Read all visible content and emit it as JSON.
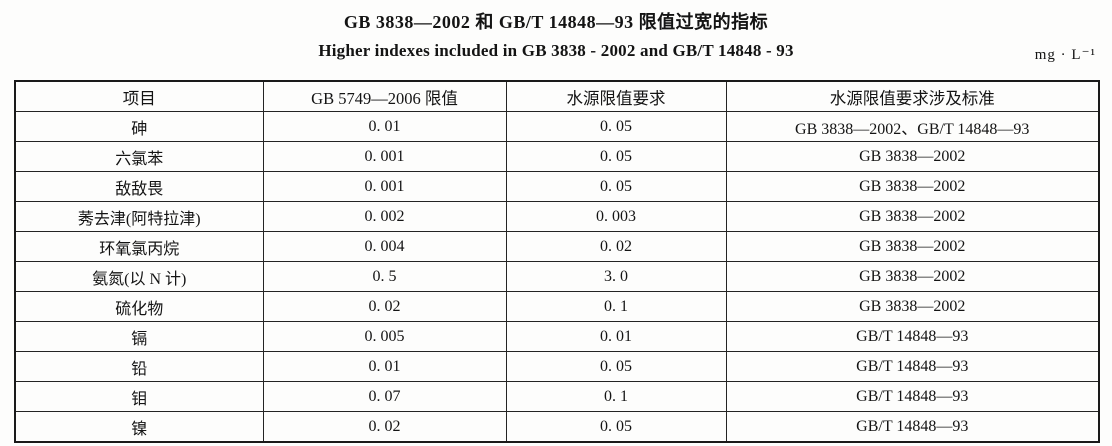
{
  "heading": {
    "title_zh": "GB 3838—2002 和 GB/T 14848—93 限值过宽的指标",
    "title_en": "Higher indexes included in GB 3838 - 2002 and GB/T 14848 - 93",
    "unit": "mg · L⁻¹"
  },
  "table": {
    "columns": [
      "项目",
      "GB 5749—2006 限值",
      "水源限值要求",
      "水源限值要求涉及标准"
    ],
    "rows": [
      [
        "砷",
        "0. 01",
        "0. 05",
        "GB 3838—2002、GB/T 14848—93"
      ],
      [
        "六氯苯",
        "0. 001",
        "0. 05",
        "GB 3838—2002"
      ],
      [
        "敌敌畏",
        "0. 001",
        "0. 05",
        "GB 3838—2002"
      ],
      [
        "莠去津(阿特拉津)",
        "0. 002",
        "0. 003",
        "GB 3838—2002"
      ],
      [
        "环氧氯丙烷",
        "0. 004",
        "0. 02",
        "GB 3838—2002"
      ],
      [
        "氨氮(以 N 计)",
        "0. 5",
        "3. 0",
        "GB 3838—2002"
      ],
      [
        "硫化物",
        "0. 02",
        "0. 1",
        "GB 3838—2002"
      ],
      [
        "镉",
        "0. 005",
        "0. 01",
        "GB/T 14848—93"
      ],
      [
        "铅",
        "0. 01",
        "0. 05",
        "GB/T 14848—93"
      ],
      [
        "钼",
        "0. 07",
        "0. 1",
        "GB/T 14848—93"
      ],
      [
        "镍",
        "0. 02",
        "0. 05",
        "GB/T 14848—93"
      ]
    ]
  }
}
